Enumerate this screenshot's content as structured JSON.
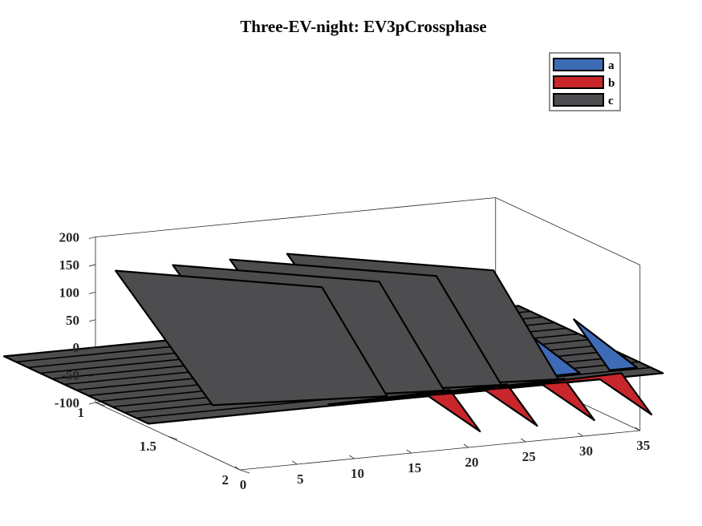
{
  "chart_data": {
    "type": "surface3d",
    "title": "Three-EV-night: EV3pCrossphase",
    "xlabel": "",
    "ylabel": "",
    "zlabel": "",
    "x_ticks": [
      "0",
      "5",
      "10",
      "15",
      "20",
      "25",
      "30",
      "35"
    ],
    "y_ticks": [
      "1",
      "1.5",
      "2"
    ],
    "z_ticks": [
      "200",
      "150",
      "100",
      "50",
      "0",
      "-50",
      "-100"
    ],
    "xlim": [
      0,
      35
    ],
    "ylim": [
      1,
      2
    ],
    "zlim": [
      -100,
      200
    ],
    "legend": {
      "position": "top-right",
      "entries": [
        "a",
        "b",
        "c"
      ]
    },
    "series": [
      {
        "name": "a",
        "color": "#3D6BB6",
        "peak_x": [
          21,
          26,
          31,
          36
        ],
        "baseline": 0,
        "peak": 47,
        "trough": -47
      },
      {
        "name": "b",
        "color": "#C8262B",
        "peak_x": [
          21,
          26,
          31,
          36
        ],
        "baseline": 0,
        "peak": -73,
        "trough": 0
      },
      {
        "name": "c",
        "color": "#4D4D4F",
        "ridges": [
          [
            0.5,
            13.5
          ],
          [
            5.5,
            18.5
          ],
          [
            10.5,
            23.5
          ],
          [
            15.5,
            28.5
          ]
        ],
        "baseline": 0,
        "peak": 150
      }
    ],
    "x_extent": [
      -8,
      37
    ]
  }
}
